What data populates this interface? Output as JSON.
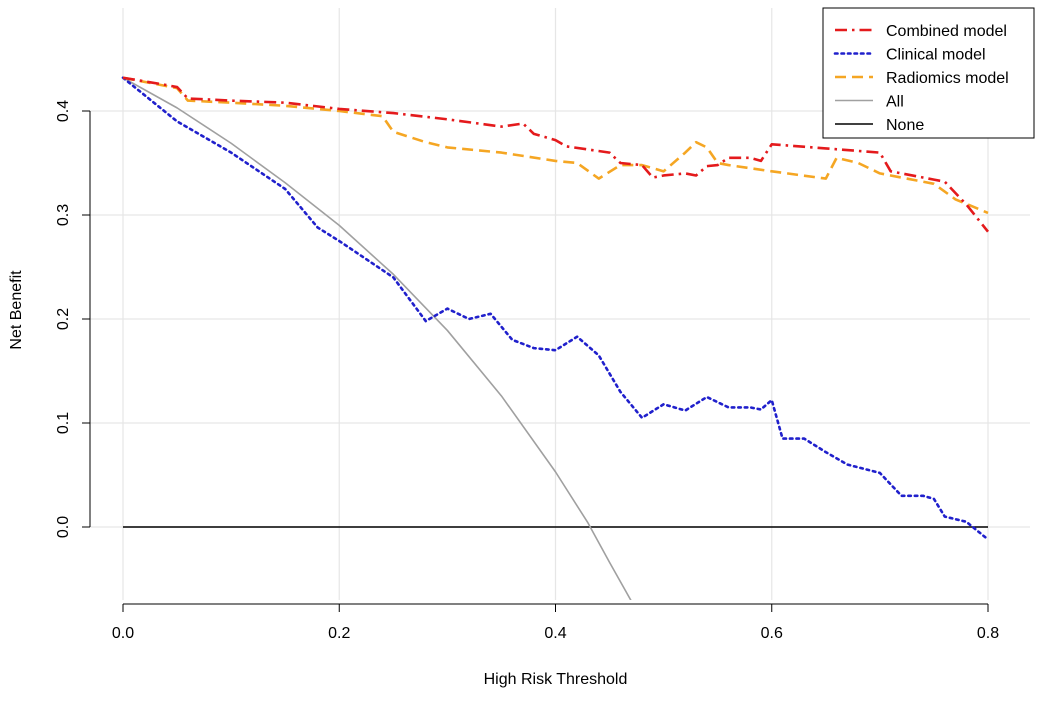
{
  "chart_data": {
    "type": "line",
    "title": "",
    "xlabel": "High Risk Threshold",
    "ylabel": "Net Benefit",
    "xlim": [
      0.0,
      0.8
    ],
    "ylim": [
      -0.07,
      0.44
    ],
    "x_ticks": [
      "0.0",
      "0.2",
      "0.4",
      "0.6",
      "0.8"
    ],
    "y_ticks": [
      "0.0",
      "0.1",
      "0.2",
      "0.3",
      "0.4"
    ],
    "grid": true,
    "legend_position": "top-right",
    "series": [
      {
        "name": "Combined model",
        "color": "#e41a1c",
        "style": "dotdash",
        "x": [
          0.0,
          0.04,
          0.05,
          0.06,
          0.1,
          0.15,
          0.2,
          0.25,
          0.3,
          0.35,
          0.37,
          0.38,
          0.4,
          0.41,
          0.45,
          0.46,
          0.48,
          0.49,
          0.5,
          0.52,
          0.53,
          0.54,
          0.55,
          0.56,
          0.58,
          0.59,
          0.6,
          0.65,
          0.7,
          0.71,
          0.75,
          0.76,
          0.78,
          0.8
        ],
        "values": [
          0.432,
          0.425,
          0.423,
          0.412,
          0.41,
          0.408,
          0.402,
          0.398,
          0.392,
          0.385,
          0.388,
          0.378,
          0.372,
          0.366,
          0.36,
          0.35,
          0.348,
          0.336,
          0.338,
          0.34,
          0.338,
          0.347,
          0.348,
          0.355,
          0.355,
          0.352,
          0.368,
          0.364,
          0.36,
          0.342,
          0.334,
          0.332,
          0.31,
          0.284
        ]
      },
      {
        "name": "Clinical model",
        "color": "#2020cc",
        "style": "dotted",
        "x": [
          0.0,
          0.05,
          0.1,
          0.15,
          0.18,
          0.2,
          0.25,
          0.28,
          0.3,
          0.32,
          0.34,
          0.36,
          0.38,
          0.4,
          0.42,
          0.44,
          0.46,
          0.48,
          0.5,
          0.52,
          0.54,
          0.56,
          0.58,
          0.59,
          0.6,
          0.61,
          0.63,
          0.65,
          0.67,
          0.7,
          0.72,
          0.74,
          0.75,
          0.76,
          0.78,
          0.8
        ],
        "values": [
          0.432,
          0.39,
          0.36,
          0.325,
          0.288,
          0.275,
          0.24,
          0.198,
          0.21,
          0.2,
          0.205,
          0.18,
          0.172,
          0.17,
          0.183,
          0.165,
          0.13,
          0.105,
          0.118,
          0.112,
          0.125,
          0.115,
          0.115,
          0.113,
          0.122,
          0.085,
          0.085,
          0.072,
          0.06,
          0.052,
          0.03,
          0.03,
          0.027,
          0.01,
          0.005,
          -0.012
        ]
      },
      {
        "name": "Radiomics model",
        "color": "#f5a623",
        "style": "dashed",
        "x": [
          0.0,
          0.05,
          0.06,
          0.1,
          0.15,
          0.2,
          0.24,
          0.25,
          0.28,
          0.3,
          0.35,
          0.4,
          0.42,
          0.44,
          0.46,
          0.48,
          0.5,
          0.52,
          0.53,
          0.54,
          0.55,
          0.56,
          0.6,
          0.65,
          0.66,
          0.68,
          0.7,
          0.75,
          0.77,
          0.8
        ],
        "values": [
          0.432,
          0.422,
          0.41,
          0.408,
          0.405,
          0.4,
          0.395,
          0.38,
          0.37,
          0.365,
          0.36,
          0.352,
          0.35,
          0.335,
          0.348,
          0.348,
          0.342,
          0.36,
          0.37,
          0.365,
          0.35,
          0.348,
          0.342,
          0.335,
          0.355,
          0.35,
          0.34,
          0.33,
          0.315,
          0.302
        ]
      },
      {
        "name": "All",
        "color": "#a0a0a0",
        "style": "solid",
        "x": [
          0.0,
          0.05,
          0.1,
          0.15,
          0.2,
          0.25,
          0.3,
          0.35,
          0.4,
          0.43,
          0.45,
          0.47
        ],
        "values": [
          0.432,
          0.403,
          0.369,
          0.331,
          0.29,
          0.243,
          0.189,
          0.126,
          0.053,
          0.004,
          -0.034,
          -0.071
        ]
      },
      {
        "name": "None",
        "color": "#000000",
        "style": "solid",
        "x": [
          0.0,
          0.8
        ],
        "values": [
          0.0,
          0.0
        ]
      }
    ]
  }
}
